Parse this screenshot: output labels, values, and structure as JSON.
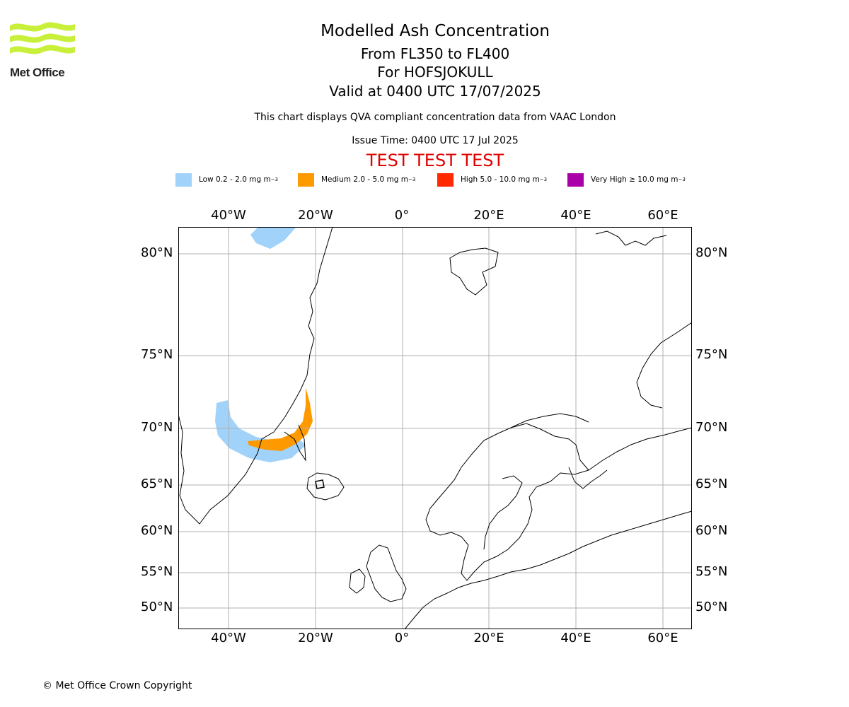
{
  "logo": {
    "text": "Met Office",
    "color": "#c8f03a"
  },
  "header": {
    "title": "Modelled Ash Concentration",
    "levels": "From FL350 to FL400",
    "volcano": "For HOFSJOKULL",
    "valid": "Valid at 0400 UTC 17/07/2025",
    "compliance": "This chart displays QVA compliant concentration data from VAAC London",
    "issue": "Issue Time: 0400 UTC 17 Jul 2025",
    "test_banner": "TEST TEST TEST",
    "test_color": "#e00000"
  },
  "legend": [
    {
      "label": "Low 0.2 - 2.0 mg m",
      "unit_sup": "−3",
      "color": "#a0d2fa"
    },
    {
      "label": "Medium 2.0 - 5.0 mg m",
      "unit_sup": "−3",
      "color": "#ff9900"
    },
    {
      "label": "High 5.0 - 10.0 mg m",
      "unit_sup": "−3",
      "color": "#ff2a00"
    },
    {
      "label": "Very High  ≥  10.0 mg m",
      "unit_sup": "−3",
      "color": "#aa00aa"
    }
  ],
  "axes": {
    "longitudes": [
      "40°W",
      "20°W",
      "0°",
      "20°E",
      "40°E",
      "60°E"
    ],
    "latitudes": [
      "80°N",
      "75°N",
      "70°N",
      "65°N",
      "60°N",
      "55°N",
      "50°N"
    ],
    "lon_values": [
      -40,
      -20,
      0,
      20,
      40,
      60
    ],
    "lat_values": [
      80,
      75,
      70,
      65,
      60,
      55,
      50
    ],
    "grid": true
  },
  "footer": {
    "copyright": "© Met Office Crown Copyright"
  }
}
